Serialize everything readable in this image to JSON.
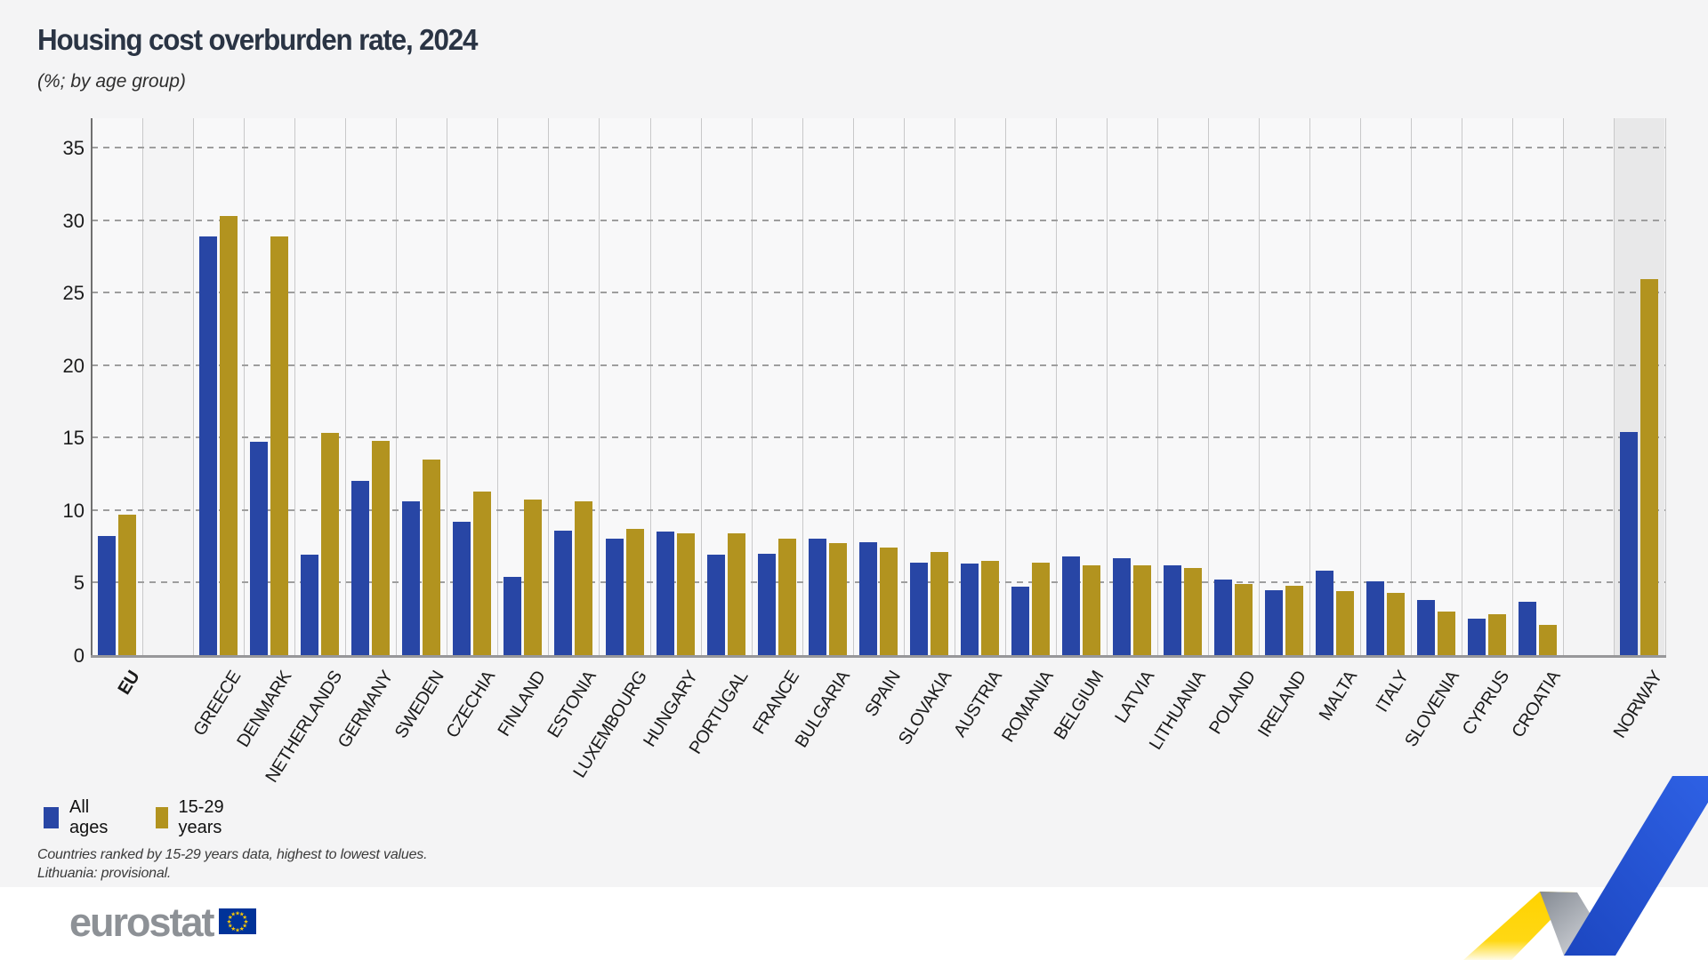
{
  "title": "Housing cost overburden rate, 2024",
  "subtitle": "(%; by age group)",
  "legend": {
    "items": [
      {
        "label": "All ages",
        "color": "#2846a5"
      },
      {
        "label": "15-29 years",
        "color": "#b2931f"
      }
    ]
  },
  "footnotes": {
    "line1": "Countries ranked by 15-29 years data, highest to lowest values.",
    "line2": "Lithuania: provisional."
  },
  "logo": {
    "text": "eurostat",
    "flag_color": "#003399",
    "star_color": "#ffcc00"
  },
  "colors": {
    "all_ages": "#2846a5",
    "youth": "#b2931f",
    "norway_band": "#e8e8e9",
    "background": "#f4f4f5",
    "swoosh_yellow": "#ffd200",
    "swoosh_blue": "#2553cc",
    "swoosh_gray": "#9aa0a8"
  },
  "chart_data": {
    "type": "bar",
    "title": "Housing cost overburden rate, 2024",
    "subtitle": "(%; by age group)",
    "ylabel": "%",
    "ylim": [
      0,
      35
    ],
    "yticks": [
      35,
      30,
      25,
      20,
      15,
      10,
      5,
      0
    ],
    "grid": "horizontal-dashed and vertical column separators",
    "legend_position": "bottom-left",
    "highlighted_category": "NORWAY",
    "categories": [
      "EU",
      "GREECE",
      "DENMARK",
      "NETHERLANDS",
      "GERMANY",
      "SWEDEN",
      "CZECHIA",
      "FINLAND",
      "ESTONIA",
      "LUXEMBOURG",
      "HUNGARY",
      "PORTUGAL",
      "FRANCE",
      "BULGARIA",
      "SPAIN",
      "SLOVAKIA",
      "AUSTRIA",
      "ROMANIA",
      "BELGIUM",
      "LATVIA",
      "LITHUANIA",
      "POLAND",
      "IRELAND",
      "MALTA",
      "ITALY",
      "SLOVENIA",
      "CYPRUS",
      "CROATIA",
      "NORWAY"
    ],
    "series": [
      {
        "name": "All ages",
        "values": [
          8.2,
          28.9,
          14.7,
          6.9,
          12.0,
          10.6,
          9.2,
          5.4,
          8.6,
          8.0,
          8.5,
          6.9,
          7.0,
          8.0,
          7.8,
          6.4,
          6.3,
          4.7,
          6.8,
          6.7,
          6.2,
          5.2,
          4.5,
          5.8,
          5.1,
          3.8,
          2.5,
          3.7,
          15.4
        ]
      },
      {
        "name": "15-29 years",
        "values": [
          9.7,
          30.3,
          28.9,
          15.3,
          14.8,
          13.5,
          11.3,
          10.7,
          10.6,
          8.7,
          8.4,
          8.4,
          8.0,
          7.7,
          7.4,
          7.1,
          6.5,
          6.4,
          6.2,
          6.2,
          6.0,
          4.9,
          4.8,
          4.4,
          4.3,
          3.0,
          2.8,
          2.1,
          25.9
        ]
      }
    ]
  }
}
